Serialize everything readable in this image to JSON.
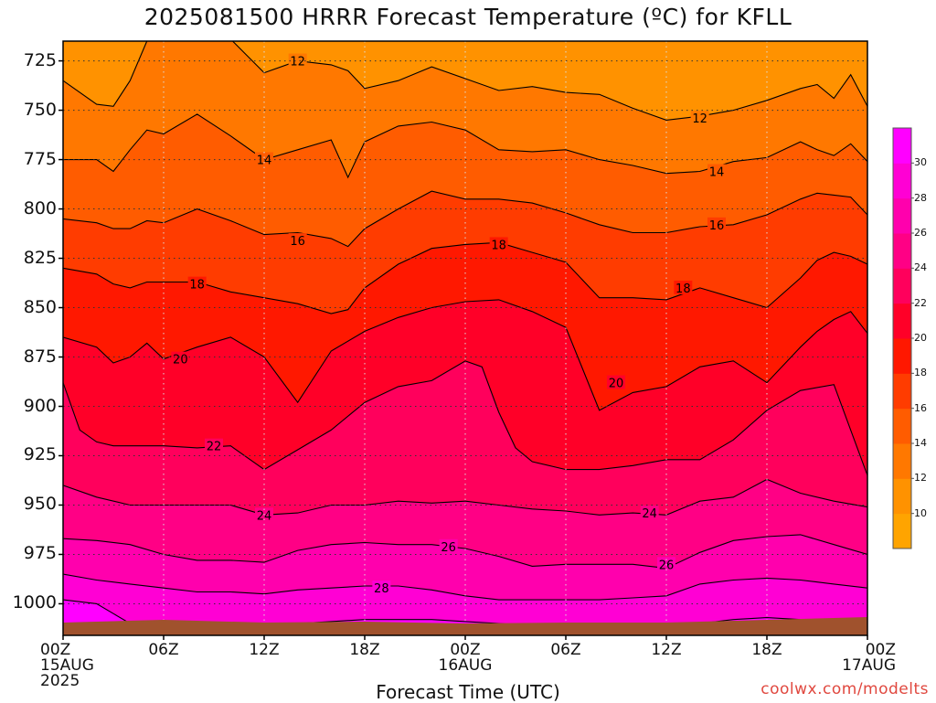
{
  "title": "2025081500 HRRR Forecast Temperature (ºC) for KFLL",
  "credit": "coolwx.com/modelts",
  "chart_data": {
    "type": "heatmap",
    "title": "2025081500 HRRR Forecast Temperature (ºC) for KFLL",
    "xlabel": "Forecast Time (UTC)",
    "ylabel": "",
    "y_axis": {
      "scale": "pressure (inverted)",
      "ticks": [
        725,
        750,
        775,
        800,
        825,
        850,
        875,
        900,
        925,
        950,
        975,
        1000
      ],
      "ylim": [
        715,
        1016
      ]
    },
    "x_axis": {
      "ticks": [
        {
          "label": "00Z",
          "sub": "15AUG",
          "sub2": "2025"
        },
        {
          "label": "06Z",
          "sub": "",
          "sub2": ""
        },
        {
          "label": "12Z",
          "sub": "",
          "sub2": ""
        },
        {
          "label": "18Z",
          "sub": "",
          "sub2": ""
        },
        {
          "label": "00Z",
          "sub": "16AUG",
          "sub2": ""
        },
        {
          "label": "06Z",
          "sub": "",
          "sub2": ""
        },
        {
          "label": "12Z",
          "sub": "",
          "sub2": ""
        },
        {
          "label": "18Z",
          "sub": "",
          "sub2": ""
        },
        {
          "label": "00Z",
          "sub": "17AUG",
          "sub2": ""
        }
      ],
      "range_hours": [
        0,
        48
      ]
    },
    "grid": true,
    "colorbar": {
      "levels": [
        8,
        10,
        12,
        14,
        16,
        18,
        20,
        22,
        24,
        26,
        28,
        30,
        32
      ],
      "labels": [
        10,
        12,
        14,
        16,
        18,
        20,
        22,
        24,
        26,
        28,
        30
      ],
      "colors": [
        "#ffa400",
        "#ff9200",
        "#ff7800",
        "#ff5c00",
        "#ff3c00",
        "#ff1800",
        "#ff0028",
        "#ff005c",
        "#ff0085",
        "#ff00ad",
        "#ff00d4",
        "#ff00ff"
      ]
    },
    "contours": [
      {
        "value": 12,
        "labels": [
          {
            "hour": 14,
            "p": 725
          },
          {
            "hour": 38,
            "p": 754
          }
        ],
        "hours": [
          0,
          2,
          3,
          4,
          5,
          6,
          8,
          10,
          12,
          14,
          16,
          17,
          18,
          20,
          22,
          24,
          26,
          28,
          30,
          32,
          34,
          36,
          38,
          40,
          42,
          44,
          45,
          46,
          47,
          48
        ],
        "pressures": [
          735,
          747,
          748,
          735,
          715,
          714,
          714,
          714,
          731,
          725,
          727,
          730,
          739,
          735,
          728,
          734,
          740,
          738,
          741,
          742,
          749,
          755,
          753,
          750,
          745,
          739,
          737,
          744,
          732,
          748
        ]
      },
      {
        "value": 14,
        "labels": [
          {
            "hour": 12,
            "p": 775
          },
          {
            "hour": 39,
            "p": 781
          }
        ],
        "hours": [
          0,
          2,
          3,
          4,
          5,
          6,
          8,
          10,
          12,
          14,
          16,
          17,
          18,
          20,
          22,
          24,
          26,
          28,
          30,
          32,
          34,
          36,
          38,
          40,
          42,
          44,
          45,
          46,
          47,
          48
        ],
        "pressures": [
          775,
          775,
          781,
          770,
          760,
          762,
          752,
          763,
          775,
          770,
          765,
          784,
          766,
          758,
          756,
          760,
          770,
          771,
          770,
          775,
          778,
          782,
          781,
          776,
          774,
          766,
          770,
          773,
          767,
          776
        ]
      },
      {
        "value": 16,
        "labels": [
          {
            "hour": 14,
            "p": 816
          },
          {
            "hour": 39,
            "p": 808
          }
        ],
        "hours": [
          0,
          2,
          3,
          4,
          5,
          6,
          8,
          10,
          12,
          14,
          16,
          17,
          18,
          20,
          22,
          24,
          26,
          28,
          30,
          32,
          34,
          36,
          38,
          40,
          42,
          44,
          45,
          46,
          47,
          48
        ],
        "pressures": [
          805,
          807,
          810,
          810,
          806,
          807,
          800,
          806,
          813,
          812,
          815,
          819,
          810,
          800,
          791,
          795,
          795,
          797,
          802,
          808,
          812,
          812,
          809,
          808,
          803,
          795,
          792,
          793,
          794,
          803
        ]
      },
      {
        "value": 18,
        "labels": [
          {
            "hour": 8,
            "p": 838
          },
          {
            "hour": 26,
            "p": 818
          },
          {
            "hour": 37,
            "p": 840
          }
        ],
        "hours": [
          0,
          2,
          3,
          4,
          5,
          6,
          8,
          10,
          12,
          14,
          16,
          17,
          18,
          20,
          22,
          24,
          26,
          28,
          30,
          32,
          34,
          36,
          38,
          40,
          42,
          44,
          45,
          46,
          47,
          48
        ],
        "pressures": [
          830,
          833,
          838,
          840,
          837,
          837,
          837,
          842,
          845,
          848,
          853,
          851,
          840,
          828,
          820,
          818,
          817,
          822,
          827,
          845,
          845,
          846,
          840,
          845,
          850,
          835,
          826,
          822,
          824,
          828
        ]
      },
      {
        "value": 20,
        "labels": [
          {
            "hour": 7,
            "p": 876
          },
          {
            "hour": 33,
            "p": 888
          }
        ],
        "hours": [
          0,
          2,
          3,
          4,
          5,
          6,
          8,
          10,
          12,
          14,
          16,
          17,
          18,
          20,
          22,
          24,
          26,
          28,
          30,
          32,
          34,
          36,
          38,
          40,
          42,
          44,
          45,
          46,
          47,
          48
        ],
        "pressures": [
          865,
          870,
          878,
          875,
          868,
          876,
          870,
          865,
          875,
          898,
          872,
          867,
          862,
          855,
          850,
          847,
          846,
          852,
          860,
          902,
          893,
          890,
          880,
          877,
          888,
          870,
          862,
          856,
          852,
          863
        ]
      },
      {
        "value": 22,
        "labels": [
          {
            "hour": 9,
            "p": 920
          }
        ],
        "hours": [
          0,
          1,
          2,
          3,
          4,
          5,
          6,
          8,
          10,
          12,
          14,
          16,
          18,
          20,
          22,
          24,
          25,
          26,
          27,
          28,
          30,
          32,
          34,
          36,
          38,
          40,
          42,
          44,
          46,
          48
        ],
        "pressures": [
          888,
          912,
          918,
          920,
          920,
          920,
          920,
          921,
          920,
          932,
          922,
          912,
          898,
          890,
          887,
          877,
          880,
          903,
          921,
          928,
          932,
          932,
          930,
          927,
          927,
          917,
          902,
          892,
          889,
          935
        ]
      },
      {
        "value": 24,
        "labels": [
          {
            "hour": 12,
            "p": 955
          },
          {
            "hour": 35,
            "p": 954
          }
        ],
        "hours": [
          0,
          2,
          4,
          6,
          8,
          10,
          12,
          14,
          16,
          18,
          20,
          22,
          24,
          26,
          28,
          30,
          32,
          34,
          36,
          38,
          40,
          42,
          44,
          46,
          48
        ],
        "pressures": [
          940,
          946,
          950,
          950,
          950,
          950,
          955,
          954,
          950,
          950,
          948,
          949,
          948,
          950,
          952,
          953,
          955,
          954,
          955,
          948,
          946,
          937,
          944,
          948,
          951
        ]
      },
      {
        "value": 26,
        "labels": [
          {
            "hour": 23,
            "p": 971
          },
          {
            "hour": 36,
            "p": 980
          }
        ],
        "hours": [
          0,
          2,
          4,
          6,
          8,
          10,
          12,
          14,
          16,
          18,
          20,
          22,
          24,
          26,
          28,
          30,
          32,
          34,
          36,
          38,
          40,
          42,
          44,
          46,
          48
        ],
        "pressures": [
          967,
          968,
          970,
          975,
          978,
          978,
          979,
          973,
          970,
          969,
          970,
          970,
          972,
          976,
          981,
          980,
          980,
          980,
          982,
          974,
          968,
          966,
          965,
          970,
          975
        ]
      },
      {
        "value": 28,
        "labels": [
          {
            "hour": 19,
            "p": 992
          }
        ],
        "hours": [
          0,
          2,
          4,
          6,
          8,
          10,
          12,
          14,
          16,
          18,
          20,
          22,
          24,
          26,
          28,
          30,
          32,
          34,
          36,
          38,
          40,
          42,
          44,
          46,
          48
        ],
        "pressures": [
          985,
          988,
          990,
          992,
          994,
          994,
          995,
          993,
          992,
          991,
          991,
          993,
          996,
          998,
          998,
          998,
          998,
          997,
          996,
          990,
          988,
          987,
          988,
          990,
          992
        ]
      },
      {
        "value": 30,
        "hours": [
          0,
          2,
          3,
          4,
          5,
          6,
          8,
          10,
          12,
          14,
          16,
          18,
          20,
          22,
          24,
          26,
          28,
          30,
          32,
          34,
          36,
          38,
          40,
          42,
          44,
          46,
          48
        ],
        "pressures": [
          998,
          1000,
          1005,
          1010,
          1016,
          1012,
          1012,
          1012,
          1016,
          1010,
          1009,
          1008,
          1008,
          1008,
          1009,
          1010,
          1011,
          1011,
          1016,
          1016,
          1013,
          1010,
          1008,
          1007,
          1008,
          1009,
          1010
        ]
      }
    ]
  }
}
